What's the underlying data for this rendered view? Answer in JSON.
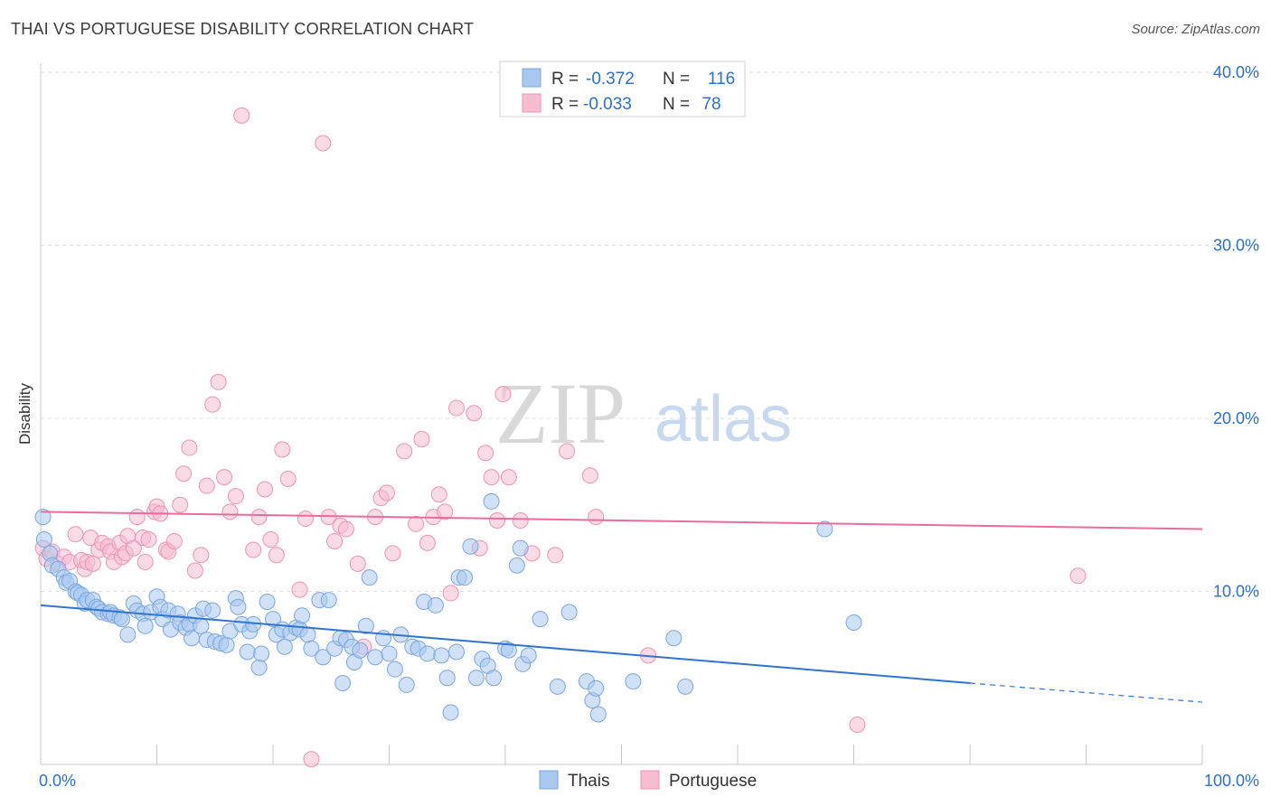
{
  "header": {
    "title": "THAI VS PORTUGUESE DISABILITY CORRELATION CHART",
    "source": "Source: ZipAtlas.com"
  },
  "watermark": {
    "zip": "ZIP",
    "atlas": "atlas"
  },
  "legend_box": [
    {
      "r_label": "R =",
      "r_value": "-0.372",
      "n_label": "N =",
      "n_value": "116"
    },
    {
      "r_label": "R =",
      "r_value": "-0.033",
      "n_label": "N =",
      "n_value": "78"
    }
  ],
  "chart_data": {
    "type": "scatter",
    "title": "THAI VS PORTUGUESE DISABILITY CORRELATION CHART",
    "xlabel": "",
    "ylabel": "Disability",
    "xlim": [
      0,
      100
    ],
    "ylim": [
      0,
      40.0
    ],
    "x_tick_labels": [
      "0.0%",
      "100.0%"
    ],
    "y_ticks": [
      10,
      20,
      30,
      40
    ],
    "y_tick_labels": [
      "10.0%",
      "20.0%",
      "30.0%",
      "40.0%"
    ],
    "grid": true,
    "legend_position": "bottom-center",
    "series": [
      {
        "name": "Thais",
        "color": "#a9c8f0",
        "stroke": "#7aa6dd",
        "line_color": "#2f74d0",
        "r": -0.372,
        "n": 116,
        "trend": {
          "x0": 0,
          "y0": 9.2,
          "x1": 80,
          "y1": 4.7,
          "dashed_to": 100,
          "dashed_y": 3.6
        },
        "points": [
          [
            0.2,
            14.3
          ],
          [
            0.3,
            13.0
          ],
          [
            0.8,
            12.2
          ],
          [
            1.0,
            11.5
          ],
          [
            1.5,
            11.3
          ],
          [
            2.0,
            10.8
          ],
          [
            2.2,
            10.5
          ],
          [
            2.5,
            10.6
          ],
          [
            3.0,
            10.0
          ],
          [
            3.2,
            9.9
          ],
          [
            3.5,
            9.8
          ],
          [
            3.8,
            9.3
          ],
          [
            4.0,
            9.5
          ],
          [
            4.5,
            9.5
          ],
          [
            4.8,
            9.1
          ],
          [
            5.0,
            9.0
          ],
          [
            5.3,
            8.8
          ],
          [
            5.8,
            8.7
          ],
          [
            6.0,
            8.8
          ],
          [
            6.3,
            8.6
          ],
          [
            6.8,
            8.5
          ],
          [
            7.0,
            8.4
          ],
          [
            7.5,
            7.5
          ],
          [
            8.0,
            9.3
          ],
          [
            8.3,
            8.9
          ],
          [
            8.8,
            8.7
          ],
          [
            9.0,
            8.0
          ],
          [
            9.5,
            8.8
          ],
          [
            10.0,
            9.7
          ],
          [
            10.3,
            9.1
          ],
          [
            10.5,
            8.4
          ],
          [
            11.0,
            8.9
          ],
          [
            11.2,
            7.8
          ],
          [
            11.8,
            8.7
          ],
          [
            12.0,
            8.2
          ],
          [
            12.5,
            7.9
          ],
          [
            12.8,
            8.1
          ],
          [
            13.0,
            7.3
          ],
          [
            13.3,
            8.6
          ],
          [
            13.8,
            8.0
          ],
          [
            14.0,
            9.0
          ],
          [
            14.3,
            7.2
          ],
          [
            14.8,
            8.9
          ],
          [
            15.0,
            7.1
          ],
          [
            15.5,
            7.0
          ],
          [
            16.0,
            6.9
          ],
          [
            16.3,
            7.7
          ],
          [
            16.8,
            9.6
          ],
          [
            17.0,
            9.1
          ],
          [
            17.3,
            8.1
          ],
          [
            17.8,
            6.5
          ],
          [
            18.0,
            7.7
          ],
          [
            18.3,
            8.1
          ],
          [
            18.8,
            5.6
          ],
          [
            19.0,
            6.4
          ],
          [
            19.5,
            9.4
          ],
          [
            20.0,
            8.4
          ],
          [
            20.3,
            7.5
          ],
          [
            20.8,
            7.8
          ],
          [
            21.0,
            6.8
          ],
          [
            21.5,
            7.6
          ],
          [
            22.0,
            7.9
          ],
          [
            22.3,
            7.8
          ],
          [
            22.5,
            8.6
          ],
          [
            23.0,
            7.5
          ],
          [
            23.3,
            6.7
          ],
          [
            24.0,
            9.5
          ],
          [
            24.3,
            6.2
          ],
          [
            24.8,
            9.5
          ],
          [
            25.3,
            6.7
          ],
          [
            25.8,
            7.3
          ],
          [
            26.0,
            4.7
          ],
          [
            26.3,
            7.2
          ],
          [
            26.8,
            6.8
          ],
          [
            27.0,
            5.9
          ],
          [
            27.5,
            6.6
          ],
          [
            28.0,
            8.0
          ],
          [
            28.3,
            10.8
          ],
          [
            28.8,
            6.2
          ],
          [
            29.5,
            7.3
          ],
          [
            30.0,
            6.4
          ],
          [
            30.5,
            5.5
          ],
          [
            31.0,
            7.5
          ],
          [
            31.5,
            4.6
          ],
          [
            32.0,
            6.8
          ],
          [
            32.5,
            6.7
          ],
          [
            33.0,
            9.4
          ],
          [
            33.3,
            6.4
          ],
          [
            34.0,
            9.2
          ],
          [
            34.5,
            6.3
          ],
          [
            35.0,
            5.0
          ],
          [
            35.3,
            3.0
          ],
          [
            35.8,
            6.5
          ],
          [
            36.0,
            10.8
          ],
          [
            36.5,
            10.8
          ],
          [
            37.0,
            12.6
          ],
          [
            37.5,
            5.0
          ],
          [
            38.0,
            6.1
          ],
          [
            38.5,
            5.7
          ],
          [
            38.8,
            15.2
          ],
          [
            39.0,
            5.0
          ],
          [
            40.0,
            6.7
          ],
          [
            40.3,
            6.6
          ],
          [
            41.0,
            11.5
          ],
          [
            41.3,
            12.5
          ],
          [
            41.5,
            5.8
          ],
          [
            42.0,
            6.3
          ],
          [
            43.0,
            8.4
          ],
          [
            44.5,
            4.5
          ],
          [
            45.5,
            8.8
          ],
          [
            47.0,
            4.8
          ],
          [
            47.5,
            3.7
          ],
          [
            47.8,
            4.4
          ],
          [
            48.0,
            2.9
          ],
          [
            51.0,
            4.8
          ],
          [
            54.5,
            7.3
          ],
          [
            55.5,
            4.5
          ],
          [
            67.5,
            13.6
          ],
          [
            70.0,
            8.2
          ]
        ]
      },
      {
        "name": "Portuguese",
        "color": "#f6bcd0",
        "stroke": "#ec94b4",
        "line_color": "#e86d9c",
        "r": -0.033,
        "n": 78,
        "trend": {
          "x0": 0,
          "y0": 14.6,
          "x1": 100,
          "y1": 13.6
        },
        "points": [
          [
            0.2,
            12.5
          ],
          [
            0.5,
            11.9
          ],
          [
            1.0,
            12.3
          ],
          [
            1.5,
            11.6
          ],
          [
            2.0,
            12.0
          ],
          [
            2.5,
            11.7
          ],
          [
            3.0,
            13.3
          ],
          [
            3.5,
            11.8
          ],
          [
            3.8,
            11.3
          ],
          [
            4.0,
            11.7
          ],
          [
            4.3,
            13.1
          ],
          [
            4.5,
            11.6
          ],
          [
            5.0,
            12.4
          ],
          [
            5.3,
            12.8
          ],
          [
            5.8,
            12.6
          ],
          [
            6.0,
            12.3
          ],
          [
            6.3,
            11.7
          ],
          [
            6.8,
            12.8
          ],
          [
            7.0,
            12.0
          ],
          [
            7.3,
            12.2
          ],
          [
            7.5,
            13.2
          ],
          [
            8.0,
            12.5
          ],
          [
            8.3,
            14.3
          ],
          [
            8.8,
            13.1
          ],
          [
            9.0,
            11.7
          ],
          [
            9.3,
            13.0
          ],
          [
            9.8,
            14.6
          ],
          [
            10.0,
            14.9
          ],
          [
            10.3,
            14.5
          ],
          [
            10.8,
            12.4
          ],
          [
            11.0,
            12.3
          ],
          [
            11.5,
            12.9
          ],
          [
            12.0,
            15.0
          ],
          [
            12.3,
            16.8
          ],
          [
            12.8,
            18.3
          ],
          [
            13.3,
            11.2
          ],
          [
            13.8,
            12.1
          ],
          [
            14.3,
            16.1
          ],
          [
            14.8,
            20.8
          ],
          [
            15.3,
            22.1
          ],
          [
            15.8,
            16.6
          ],
          [
            16.3,
            14.6
          ],
          [
            16.8,
            15.5
          ],
          [
            17.3,
            37.5
          ],
          [
            18.3,
            12.4
          ],
          [
            18.8,
            14.3
          ],
          [
            19.3,
            15.9
          ],
          [
            19.8,
            13.0
          ],
          [
            20.3,
            12.1
          ],
          [
            20.8,
            18.2
          ],
          [
            21.3,
            16.5
          ],
          [
            22.3,
            10.1
          ],
          [
            22.8,
            14.2
          ],
          [
            23.3,
            0.3
          ],
          [
            24.3,
            35.9
          ],
          [
            24.8,
            14.3
          ],
          [
            25.3,
            12.9
          ],
          [
            25.8,
            13.8
          ],
          [
            26.3,
            13.6
          ],
          [
            27.3,
            11.6
          ],
          [
            27.8,
            6.8
          ],
          [
            28.8,
            14.3
          ],
          [
            29.3,
            15.4
          ],
          [
            29.8,
            15.7
          ],
          [
            30.3,
            12.2
          ],
          [
            31.3,
            18.1
          ],
          [
            32.3,
            13.9
          ],
          [
            32.8,
            18.8
          ],
          [
            33.3,
            12.8
          ],
          [
            33.8,
            14.3
          ],
          [
            34.3,
            15.6
          ],
          [
            34.8,
            14.6
          ],
          [
            35.3,
            9.9
          ],
          [
            35.8,
            20.6
          ],
          [
            37.3,
            20.3
          ],
          [
            37.8,
            12.5
          ],
          [
            38.3,
            18.0
          ],
          [
            38.8,
            16.6
          ],
          [
            39.3,
            14.1
          ],
          [
            39.8,
            21.4
          ],
          [
            40.3,
            16.6
          ],
          [
            41.3,
            14.1
          ],
          [
            42.3,
            12.2
          ],
          [
            44.3,
            12.1
          ],
          [
            45.3,
            18.1
          ],
          [
            47.3,
            16.7
          ],
          [
            47.8,
            14.3
          ],
          [
            52.3,
            6.3
          ],
          [
            70.3,
            2.3
          ],
          [
            89.3,
            10.9
          ]
        ]
      }
    ]
  },
  "bottom_legend": {
    "thais": "Thais",
    "portuguese": "Portuguese"
  }
}
